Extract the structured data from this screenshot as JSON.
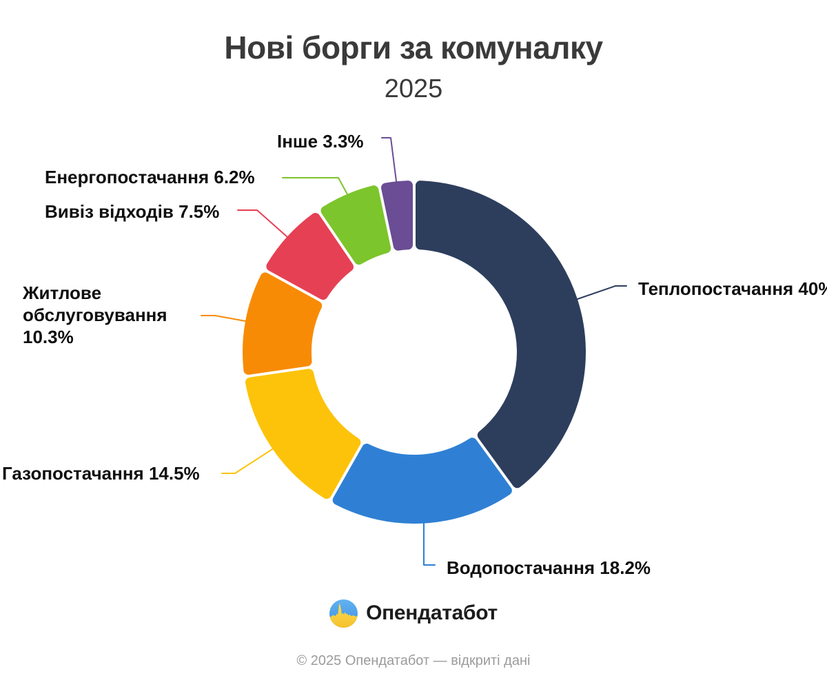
{
  "title": "Нові борги за комуналку",
  "subtitle": "2025",
  "chart_data": {
    "type": "pie",
    "variant": "donut",
    "title": "Нові борги за комуналку",
    "subtitle": "2025",
    "unit": "%",
    "total": 100,
    "start_angle_deg": 0,
    "direction": "clockwise",
    "hole_ratio": 0.6,
    "label_format": "{label} {value}%",
    "segments": [
      {
        "label": "Теплопостачання",
        "value": 40,
        "color": "#2D3E5D"
      },
      {
        "label": "Водопостачання",
        "value": 18.2,
        "color": "#2F80D4"
      },
      {
        "label": "Газопостачання",
        "value": 14.5,
        "color": "#FDC30A"
      },
      {
        "label": "Житлове обслуговування",
        "value": 10.3,
        "color": "#F88B05"
      },
      {
        "label": "Вивіз відходів",
        "value": 7.5,
        "color": "#E64054"
      },
      {
        "label": "Енергопостачання",
        "value": 6.2,
        "color": "#7CC52C"
      },
      {
        "label": "Інше",
        "value": 3.3,
        "color": "#6A4D94"
      }
    ]
  },
  "logo": {
    "text": "Опендатабот"
  },
  "footer": {
    "text": "© 2025 Опендатабот — відкриті дані"
  }
}
